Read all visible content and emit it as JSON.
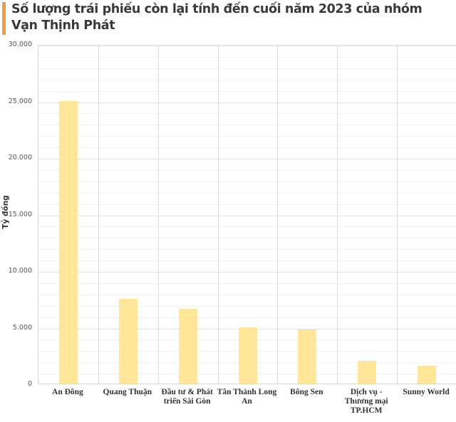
{
  "header": {
    "title": "Số lượng trái phiếu còn lại tính đến cuối năm 2023 của nhóm Vạn Thịnh Phát",
    "accent_color": "#f39a44"
  },
  "chart_data": {
    "type": "bar",
    "title": "Số lượng trái phiếu còn lại tính đến cuối năm 2023 của nhóm Vạn Thịnh Phát",
    "xlabel": "",
    "ylabel": "Tỷ đồng",
    "categories": [
      "An Đông",
      "Quang Thuận",
      "Đầu tư & Phát triển Sài Gòn",
      "Tân Thành Long An",
      "Bông Sen",
      "Dịch vụ - Thương mại TP.HCM",
      "Sunny World"
    ],
    "values": [
      24950,
      7500,
      6600,
      5000,
      4800,
      2000,
      1600
    ],
    "ylim": [
      0,
      30000
    ],
    "yticks": [
      0,
      5000,
      10000,
      15000,
      20000,
      25000,
      30000
    ],
    "ytick_labels": [
      "0",
      "5.000",
      "10.000",
      "15.000",
      "20.000",
      "25.000",
      "30.000"
    ],
    "grid": true,
    "legend": null,
    "bar_color": "#ffe699"
  },
  "axis": {
    "ylabel": "Tỷ đồng",
    "yticks": [
      "30.000",
      "25.000",
      "20.000",
      "15.000",
      "10.000",
      "5.000",
      "0"
    ],
    "xlabels": [
      "An Đông",
      "Quang Thuận",
      "Đầu tư & Phát triển Sài Gòn",
      "Tân Thành Long An",
      "Bông Sen",
      "Dịch vụ - Thương mại TP.HCM",
      "Sunny World"
    ]
  }
}
